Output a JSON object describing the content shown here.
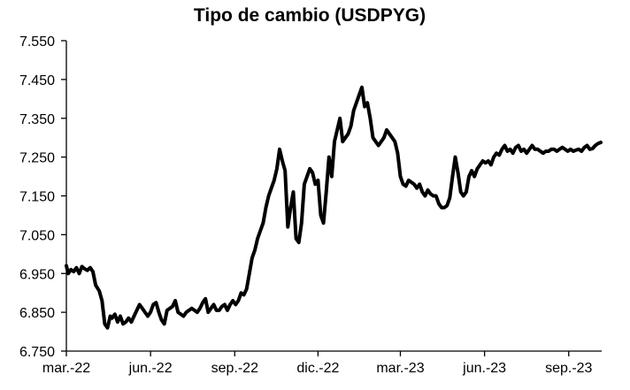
{
  "chart_data": {
    "type": "line",
    "title": "Tipo de cambio (USDPYG)",
    "xlabel": "",
    "ylabel": "",
    "ylim": [
      6750,
      7550
    ],
    "yticks": [
      6750,
      6850,
      6950,
      7050,
      7150,
      7250,
      7350,
      7450,
      7550
    ],
    "ytick_labels": [
      "6.750",
      "6.850",
      "6.950",
      "7.050",
      "7.150",
      "7.250",
      "7.350",
      "7.450",
      "7.550"
    ],
    "xlim": [
      "2022-03-01",
      "2023-10-07"
    ],
    "xticks": [
      "2022-03-01",
      "2022-06-01",
      "2022-09-01",
      "2022-12-01",
      "2023-03-01",
      "2023-06-01",
      "2023-09-01"
    ],
    "xtick_labels": [
      "mar.-22",
      "jun.-22",
      "sep.-22",
      "dic.-22",
      "mar.-23",
      "jun.-23",
      "sep.-23"
    ],
    "grid": false,
    "legend": "none",
    "line_color": "#000000",
    "series": [
      {
        "x": [
          "2022-03-01",
          "2022-03-03",
          "2022-03-06",
          "2022-03-09",
          "2022-03-12",
          "2022-03-15",
          "2022-03-18",
          "2022-03-21",
          "2022-03-24",
          "2022-03-27",
          "2022-03-30",
          "2022-04-02",
          "2022-04-06",
          "2022-04-09",
          "2022-04-12",
          "2022-04-15",
          "2022-04-18",
          "2022-04-20",
          "2022-04-23",
          "2022-04-26",
          "2022-04-29",
          "2022-05-02",
          "2022-05-05",
          "2022-05-08",
          "2022-05-11",
          "2022-05-14",
          "2022-05-17",
          "2022-05-20",
          "2022-05-23",
          "2022-05-26",
          "2022-05-29",
          "2022-06-01",
          "2022-06-04",
          "2022-06-07",
          "2022-06-10",
          "2022-06-13",
          "2022-06-16",
          "2022-06-19",
          "2022-06-22",
          "2022-06-25",
          "2022-06-28",
          "2022-07-01",
          "2022-07-04",
          "2022-07-07",
          "2022-07-10",
          "2022-07-13",
          "2022-07-16",
          "2022-07-19",
          "2022-07-22",
          "2022-07-25",
          "2022-07-28",
          "2022-07-31",
          "2022-08-03",
          "2022-08-06",
          "2022-08-09",
          "2022-08-12",
          "2022-08-15",
          "2022-08-18",
          "2022-08-21",
          "2022-08-24",
          "2022-08-27",
          "2022-08-30",
          "2022-09-02",
          "2022-09-05",
          "2022-09-08",
          "2022-09-11",
          "2022-09-14",
          "2022-09-17",
          "2022-09-20",
          "2022-09-23",
          "2022-09-26",
          "2022-09-29",
          "2022-10-02",
          "2022-10-05",
          "2022-10-08",
          "2022-10-11",
          "2022-10-14",
          "2022-10-17",
          "2022-10-20",
          "2022-10-23",
          "2022-10-26",
          "2022-10-29",
          "2022-11-01",
          "2022-11-04",
          "2022-11-07",
          "2022-11-10",
          "2022-11-13",
          "2022-11-16",
          "2022-11-19",
          "2022-11-22",
          "2022-11-25",
          "2022-11-28",
          "2022-12-01",
          "2022-12-04",
          "2022-12-07",
          "2022-12-10",
          "2022-12-13",
          "2022-12-16",
          "2022-12-19",
          "2022-12-22",
          "2022-12-25",
          "2022-12-28",
          "2022-12-31",
          "2023-01-03",
          "2023-01-06",
          "2023-01-09",
          "2023-01-12",
          "2023-01-15",
          "2023-01-18",
          "2023-01-21",
          "2023-01-24",
          "2023-01-27",
          "2023-01-30",
          "2023-02-02",
          "2023-02-05",
          "2023-02-08",
          "2023-02-11",
          "2023-02-14",
          "2023-02-17",
          "2023-02-20",
          "2023-02-23",
          "2023-02-26",
          "2023-03-01",
          "2023-03-04",
          "2023-03-07",
          "2023-03-10",
          "2023-03-13",
          "2023-03-16",
          "2023-03-19",
          "2023-03-22",
          "2023-03-25",
          "2023-03-28",
          "2023-03-31",
          "2023-04-03",
          "2023-04-06",
          "2023-04-09",
          "2023-04-12",
          "2023-04-15",
          "2023-04-18",
          "2023-04-21",
          "2023-04-24",
          "2023-04-27",
          "2023-04-30",
          "2023-05-03",
          "2023-05-06",
          "2023-05-09",
          "2023-05-12",
          "2023-05-15",
          "2023-05-18",
          "2023-05-21",
          "2023-05-24",
          "2023-05-27",
          "2023-05-30",
          "2023-06-02",
          "2023-06-05",
          "2023-06-08",
          "2023-06-11",
          "2023-06-14",
          "2023-06-17",
          "2023-06-20",
          "2023-06-23",
          "2023-06-26",
          "2023-06-29",
          "2023-07-02",
          "2023-07-05",
          "2023-07-08",
          "2023-07-11",
          "2023-07-14",
          "2023-07-17",
          "2023-07-20",
          "2023-07-23",
          "2023-07-26",
          "2023-07-29",
          "2023-08-01",
          "2023-08-04",
          "2023-08-07",
          "2023-08-10",
          "2023-08-13",
          "2023-08-16",
          "2023-08-19",
          "2023-08-22",
          "2023-08-25",
          "2023-08-28",
          "2023-08-31",
          "2023-09-03",
          "2023-09-06",
          "2023-09-09",
          "2023-09-12",
          "2023-09-15",
          "2023-09-18",
          "2023-09-21",
          "2023-09-24",
          "2023-09-27",
          "2023-09-30",
          "2023-10-03",
          "2023-10-06"
        ],
        "values": [
          6970,
          6950,
          6960,
          6955,
          6965,
          6950,
          6968,
          6962,
          6958,
          6965,
          6955,
          6920,
          6905,
          6880,
          6820,
          6810,
          6840,
          6835,
          6845,
          6825,
          6840,
          6820,
          6825,
          6835,
          6825,
          6840,
          6855,
          6870,
          6860,
          6850,
          6840,
          6850,
          6870,
          6875,
          6850,
          6830,
          6820,
          6855,
          6860,
          6865,
          6880,
          6850,
          6845,
          6840,
          6850,
          6855,
          6860,
          6855,
          6850,
          6860,
          6875,
          6885,
          6850,
          6860,
          6870,
          6855,
          6855,
          6865,
          6870,
          6855,
          6870,
          6880,
          6870,
          6880,
          6900,
          6895,
          6910,
          6950,
          6990,
          7010,
          7040,
          7060,
          7080,
          7120,
          7150,
          7170,
          7190,
          7220,
          7270,
          7240,
          7215,
          7070,
          7120,
          7160,
          7040,
          7030,
          7080,
          7180,
          7200,
          7220,
          7210,
          7180,
          7190,
          7100,
          7080,
          7160,
          7250,
          7200,
          7290,
          7320,
          7350,
          7290,
          7300,
          7310,
          7330,
          7370,
          7390,
          7410,
          7430,
          7380,
          7390,
          7350,
          7300,
          7290,
          7280,
          7290,
          7300,
          7320,
          7310,
          7300,
          7290,
          7260,
          7200,
          7180,
          7175,
          7190,
          7185,
          7180,
          7170,
          7180,
          7160,
          7150,
          7165,
          7155,
          7150,
          7150,
          7130,
          7120,
          7120,
          7125,
          7145,
          7200,
          7250,
          7210,
          7160,
          7150,
          7160,
          7200,
          7215,
          7200,
          7220,
          7230,
          7240,
          7235,
          7240,
          7230,
          7250,
          7260,
          7255,
          7270,
          7280,
          7265,
          7270,
          7260,
          7275,
          7280,
          7265,
          7270,
          7260,
          7270,
          7280,
          7270,
          7270,
          7265,
          7260,
          7265,
          7265,
          7270,
          7270,
          7265,
          7270,
          7275,
          7270,
          7265,
          7270,
          7265,
          7268,
          7270,
          7265,
          7275,
          7280,
          7270,
          7272,
          7280,
          7285,
          7288
        ]
      }
    ]
  }
}
